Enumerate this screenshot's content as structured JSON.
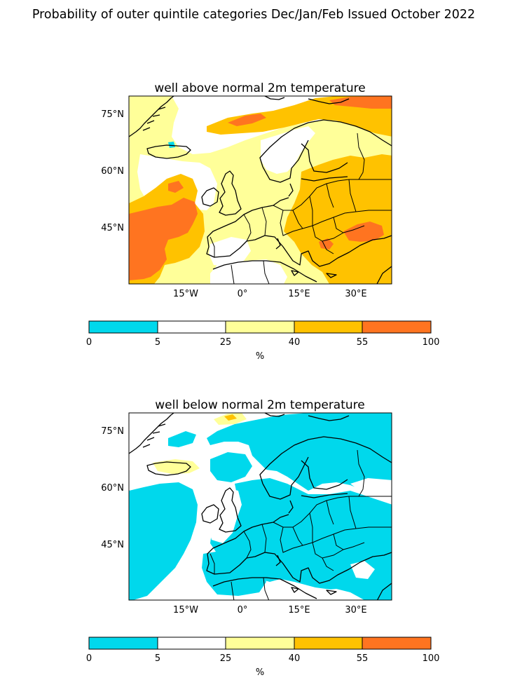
{
  "figure_title": "Probability of outer quintile categories Dec/Jan/Feb Issued October 2022",
  "colorbar": {
    "label": "%",
    "boundaries": [
      "0",
      "5",
      "25",
      "40",
      "55",
      "100"
    ],
    "colors": [
      "#00d8ec",
      "#ffffff",
      "#ffff99",
      "#ffc200",
      "#ff7420"
    ]
  },
  "chart_data": [
    {
      "type": "heatmap",
      "title": "well above normal 2m temperature",
      "x_ticks": [
        "15°W",
        "0°",
        "15°E",
        "30°E"
      ],
      "y_ticks": [
        "75°N",
        "60°N",
        "45°N"
      ],
      "xlim_deg": [
        -30,
        39
      ],
      "ylim_deg": [
        36,
        81
      ],
      "levels_percent": [
        0,
        5,
        25,
        40,
        55,
        100
      ],
      "dominant_categories": {
        "Atlantic west of Iberia": "55-100",
        "Eastern Europe / Black Sea": "40-100",
        "Barents Sea": "40-100",
        "Scandinavia / western Europe": "25-40"
      }
    },
    {
      "type": "heatmap",
      "title": "well below normal 2m temperature",
      "x_ticks": [
        "15°W",
        "0°",
        "15°E",
        "30°E"
      ],
      "y_ticks": [
        "75°N",
        "60°N",
        "45°N"
      ],
      "xlim_deg": [
        -30,
        39
      ],
      "ylim_deg": [
        36,
        81
      ],
      "levels_percent": [
        0,
        5,
        25,
        40,
        55,
        100
      ],
      "dominant_categories": {
        "Most of Europe and Atlantic": "0-5",
        "Britain / North Sea": "5-25",
        "Iceland / Svalbard": "25-40"
      }
    }
  ]
}
